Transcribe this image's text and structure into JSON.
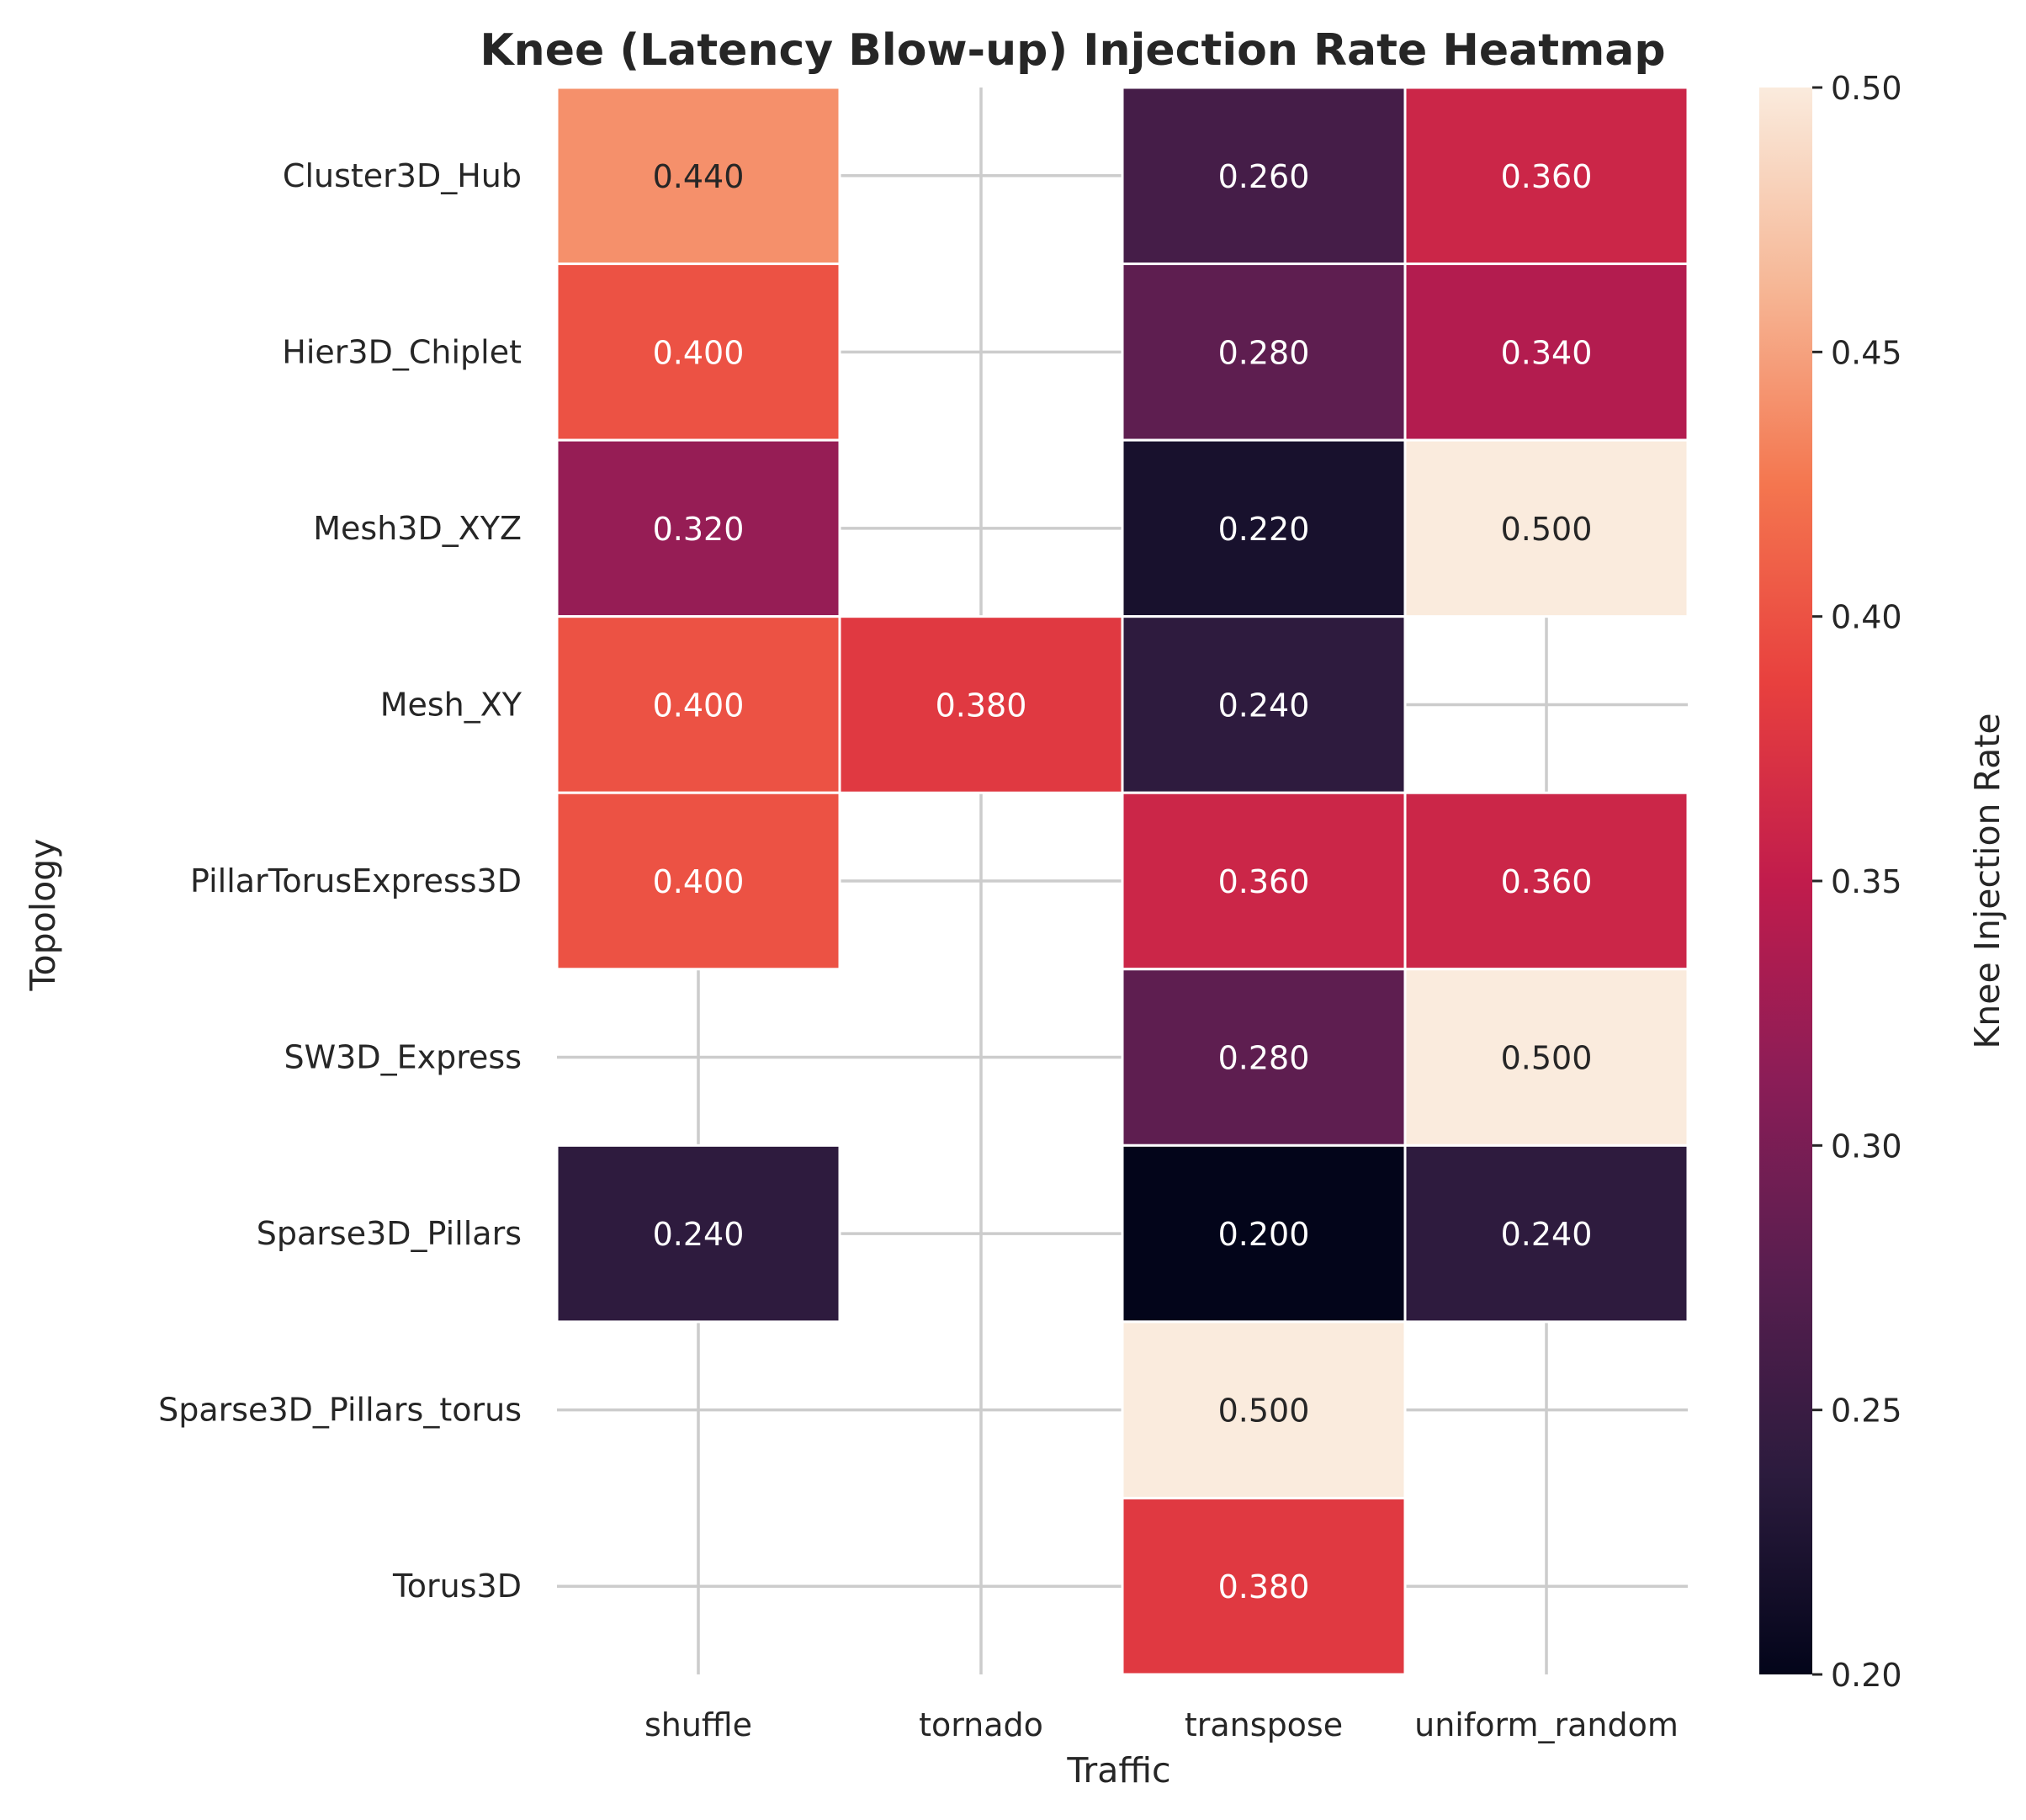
{
  "chart_data": {
    "type": "heatmap",
    "title": "Knee (Latency Blow-up) Injection Rate Heatmap",
    "xlabel": "Traffic",
    "ylabel": "Topology",
    "x_categories": [
      "shuffle",
      "tornado",
      "transpose",
      "uniform_random"
    ],
    "y_categories": [
      "Cluster3D_Hub",
      "Hier3D_Chiplet",
      "Mesh3D_XYZ",
      "Mesh_XY",
      "PillarTorusExpress3D",
      "SW3D_Express",
      "Sparse3D_Pillars",
      "Sparse3D_Pillars_torus",
      "Torus3D"
    ],
    "values": [
      [
        0.44,
        null,
        0.26,
        0.36
      ],
      [
        0.4,
        null,
        0.28,
        0.34
      ],
      [
        0.32,
        null,
        0.22,
        0.5
      ],
      [
        0.4,
        0.38,
        0.24,
        null
      ],
      [
        0.4,
        null,
        0.36,
        0.36
      ],
      [
        null,
        null,
        0.28,
        0.5
      ],
      [
        0.24,
        null,
        0.2,
        0.24
      ],
      [
        null,
        null,
        0.5,
        null
      ],
      [
        null,
        null,
        0.38,
        null
      ]
    ],
    "value_format": "0.000",
    "colorbar": {
      "label": "Knee Injection Rate",
      "vmin": 0.2,
      "vmax": 0.5,
      "ticks": [
        "0.20",
        "0.25",
        "0.30",
        "0.35",
        "0.40",
        "0.45",
        "0.50"
      ],
      "colormap": "rocket"
    },
    "grid": true
  }
}
